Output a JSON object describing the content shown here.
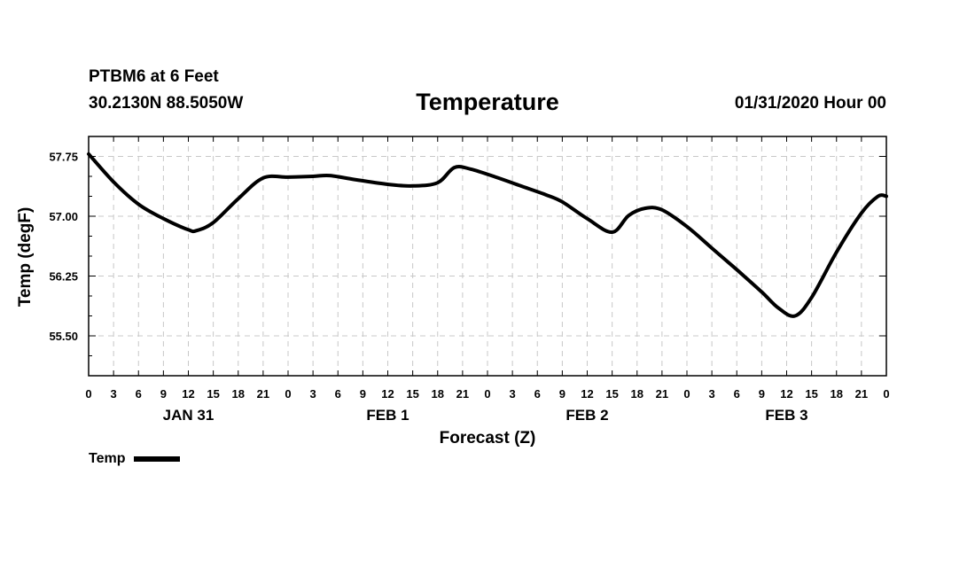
{
  "header": {
    "station": "PTBM6 at 6 Feet",
    "coords": "30.2130N 88.5050W",
    "title": "Temperature",
    "datetime": "01/31/2020 Hour 00"
  },
  "chart_data": {
    "type": "line",
    "title": "Temperature",
    "xlabel": "Forecast (Z)",
    "ylabel": "Temp (degF)",
    "ylim": [
      55.0,
      58.0
    ],
    "xlim": [
      0,
      96
    ],
    "grid": true,
    "y_ticks": [
      "57.75",
      "57.00",
      "56.25",
      "55.50"
    ],
    "y_tick_values": [
      57.75,
      57.0,
      56.25,
      55.5
    ],
    "x_tick_labels": [
      "0",
      "3",
      "6",
      "9",
      "12",
      "15",
      "18",
      "21",
      "0",
      "3",
      "6",
      "9",
      "12",
      "15",
      "18",
      "21",
      "0",
      "3",
      "6",
      "9",
      "12",
      "15",
      "18",
      "21",
      "0",
      "3",
      "6",
      "9",
      "12",
      "15",
      "18",
      "21",
      "0"
    ],
    "day_labels": [
      {
        "label": "JAN 31",
        "hour": 12
      },
      {
        "label": "FEB 1",
        "hour": 36
      },
      {
        "label": "FEB 2",
        "hour": 60
      },
      {
        "label": "FEB 3",
        "hour": 84
      }
    ],
    "series": [
      {
        "name": "Temp",
        "x": [
          0,
          3,
          6,
          9,
          12,
          13,
          15,
          18,
          21,
          24,
          27,
          29,
          32,
          36,
          39,
          42,
          44,
          46,
          49,
          52,
          55,
          57,
          60,
          63,
          65,
          67,
          69,
          72,
          75,
          78,
          81,
          83,
          85,
          87,
          90,
          93,
          95,
          96
        ],
        "y": [
          57.78,
          57.43,
          57.15,
          56.97,
          56.83,
          56.82,
          56.92,
          57.22,
          57.48,
          57.49,
          57.5,
          57.51,
          57.46,
          57.4,
          57.38,
          57.42,
          57.61,
          57.59,
          57.49,
          57.38,
          57.27,
          57.18,
          56.97,
          56.8,
          57.01,
          57.1,
          57.08,
          56.87,
          56.6,
          56.33,
          56.05,
          55.85,
          55.75,
          55.98,
          56.55,
          57.04,
          57.25,
          57.25
        ]
      }
    ]
  },
  "legend": {
    "items": [
      {
        "label": "Temp",
        "color": "#000000"
      }
    ]
  }
}
